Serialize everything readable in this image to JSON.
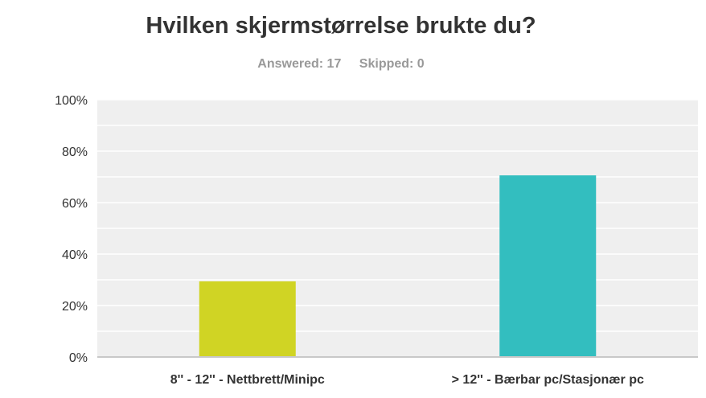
{
  "question": {
    "title": "Hvilken skjermstørrelse brukte du?"
  },
  "stats": {
    "answered_label": "Answered: 17",
    "skipped_label": "Skipped: 0"
  },
  "colors": {
    "plot_background": "#efefef",
    "gridline": "#ffffff",
    "axis": "#c8c8c8",
    "text": "#333333"
  },
  "chart_data": {
    "type": "bar",
    "title": "Hvilken skjermstørrelse brukte du?",
    "xlabel": "",
    "ylabel": "",
    "categories": [
      "8'' - 12'' - Nettbrett/Minipc",
      "> 12'' - Bærbar pc/Stasjonær pc"
    ],
    "values": [
      29.41,
      70.59
    ],
    "bar_colors": [
      "#d0d424",
      "#33bebf"
    ],
    "ylim": [
      0,
      100
    ],
    "yticks": [
      0,
      20,
      40,
      60,
      80,
      100
    ],
    "ytick_labels": [
      "0%",
      "20%",
      "40%",
      "60%",
      "80%",
      "100%"
    ],
    "grid": true,
    "legend": "none"
  }
}
